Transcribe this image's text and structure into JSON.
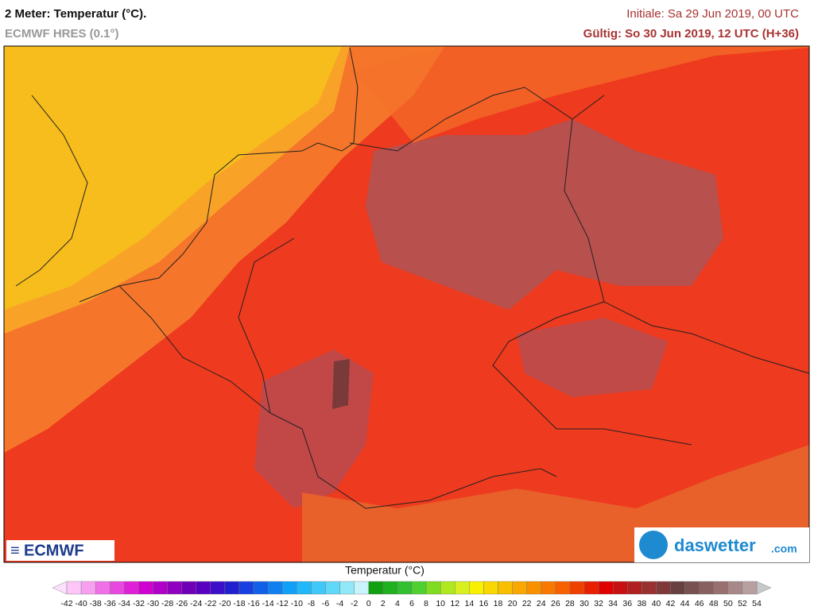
{
  "header": {
    "title": "2 Meter: Temperatur (°C).",
    "subtitle": "ECMWF HRES (0.1°)",
    "init": "Initiale: Sa 29 Jun 2019, 00 UTC",
    "valid": "Gültig: So 30 Jun 2019, 12 UTC (H+36)"
  },
  "logos": {
    "left": "ECMWF",
    "right_name": "daswetter",
    "right_suffix": ".com"
  },
  "legend": {
    "title": "Temperatur (°C)",
    "labels": [
      -42,
      -40,
      -38,
      -36,
      -34,
      -32,
      -30,
      -28,
      -26,
      -24,
      -22,
      -20,
      -18,
      -16,
      -14,
      -12,
      -10,
      -8,
      -6,
      -4,
      -2,
      0,
      2,
      4,
      6,
      8,
      10,
      12,
      14,
      16,
      18,
      20,
      22,
      24,
      26,
      28,
      30,
      32,
      34,
      36,
      38,
      40,
      42,
      44,
      46,
      48,
      50,
      52,
      54
    ],
    "colors": [
      "#fcc6f6",
      "#f8a0f0",
      "#f070e8",
      "#e848e0",
      "#e020d8",
      "#d000d0",
      "#b000c8",
      "#9000c0",
      "#7000b8",
      "#5a00c0",
      "#3c10c8",
      "#2020d0",
      "#1840e0",
      "#1060e8",
      "#1080f0",
      "#10a0f8",
      "#20b8f8",
      "#40c8f8",
      "#60d8f8",
      "#90e8f8",
      "#c8f4fc",
      "#10a010",
      "#20b020",
      "#30c030",
      "#50d030",
      "#80dc20",
      "#b0e820",
      "#d8f020",
      "#f8f000",
      "#f8d800",
      "#f8c000",
      "#f8a800",
      "#f89000",
      "#f87800",
      "#f86000",
      "#f04000",
      "#e82000",
      "#e00000",
      "#c81010",
      "#b02020",
      "#983030",
      "#803838",
      "#684040",
      "#785050",
      "#886060",
      "#987070",
      "#a88888",
      "#b8a0a0"
    ]
  }
}
